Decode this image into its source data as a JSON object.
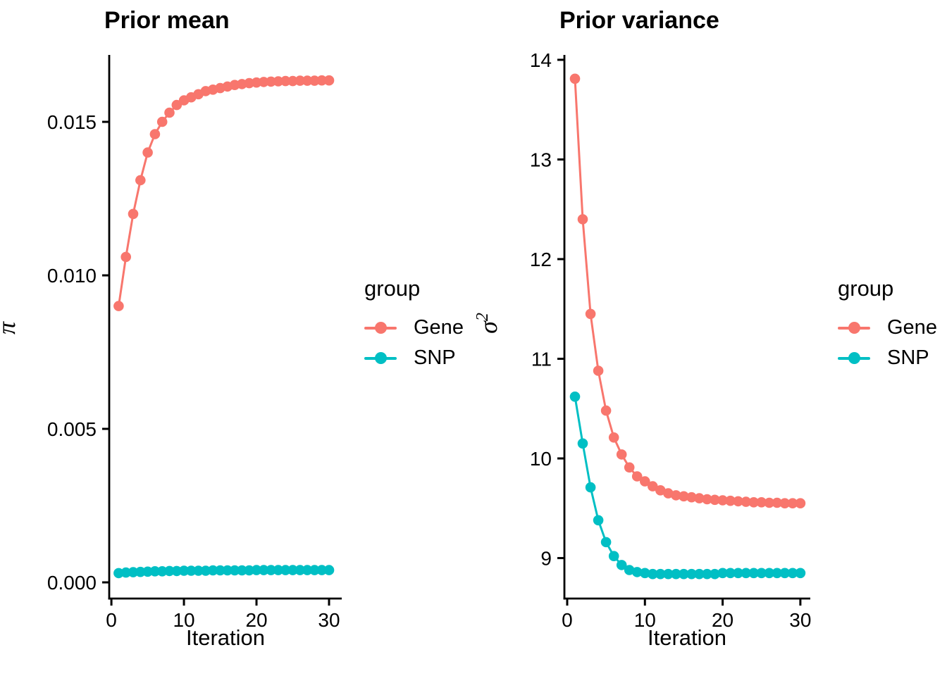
{
  "colors": {
    "gene": "#F8766D",
    "snp": "#00BFC4",
    "axis": "#000000"
  },
  "legend": {
    "title": "group",
    "items": [
      {
        "label": "Gene",
        "color_key": "gene"
      },
      {
        "label": "SNP",
        "color_key": "snp"
      }
    ]
  },
  "chart_data": [
    {
      "type": "line",
      "title": "Prior mean",
      "xlabel": "Iteration",
      "ylabel": "π",
      "ylabel_sup": "",
      "legend_position": "right",
      "grid": false,
      "x_ticks": [
        0,
        10,
        20,
        30
      ],
      "y_ticks": [
        0.0,
        0.005,
        0.01,
        0.015
      ],
      "y_tick_labels": [
        "0.000",
        "0.005",
        "0.010",
        "0.015"
      ],
      "xlim": [
        -0.3,
        31.75
      ],
      "ylim": [
        -0.000527,
        0.01718
      ],
      "x": [
        1,
        2,
        3,
        4,
        5,
        6,
        7,
        8,
        9,
        10,
        11,
        12,
        13,
        14,
        15,
        16,
        17,
        18,
        19,
        20,
        21,
        22,
        23,
        24,
        25,
        26,
        27,
        28,
        29,
        30
      ],
      "series": [
        {
          "name": "Gene",
          "color_key": "gene",
          "values": [
            0.009,
            0.0106,
            0.012,
            0.0131,
            0.014,
            0.0146,
            0.015,
            0.0153,
            0.01555,
            0.0157,
            0.0158,
            0.0159,
            0.016,
            0.01605,
            0.0161,
            0.01615,
            0.0162,
            0.01623,
            0.01626,
            0.01628,
            0.0163,
            0.01631,
            0.01632,
            0.01633,
            0.01633,
            0.01634,
            0.01634,
            0.01634,
            0.01635,
            0.01635
          ]
        },
        {
          "name": "SNP",
          "color_key": "snp",
          "values": [
            0.0003,
            0.00032,
            0.00033,
            0.00034,
            0.00035,
            0.00036,
            0.00036,
            0.00037,
            0.00037,
            0.00038,
            0.00038,
            0.00038,
            0.00038,
            0.00039,
            0.00039,
            0.00039,
            0.00039,
            0.00039,
            0.00039,
            0.0004,
            0.0004,
            0.0004,
            0.0004,
            0.0004,
            0.0004,
            0.0004,
            0.0004,
            0.0004,
            0.0004,
            0.0004
          ]
        }
      ]
    },
    {
      "type": "line",
      "title": "Prior variance",
      "xlabel": "Iteration",
      "ylabel": "σ",
      "ylabel_sup": "2",
      "legend_position": "right",
      "grid": false,
      "x_ticks": [
        0,
        10,
        20,
        30
      ],
      "y_ticks": [
        9,
        10,
        11,
        12,
        13,
        14
      ],
      "y_tick_labels": [
        "9",
        "10",
        "11",
        "12",
        "13",
        "14"
      ],
      "xlim": [
        -0.36,
        31.28
      ],
      "ylim": [
        8.594,
        14.049
      ],
      "x": [
        1,
        2,
        3,
        4,
        5,
        6,
        7,
        8,
        9,
        10,
        11,
        12,
        13,
        14,
        15,
        16,
        17,
        18,
        19,
        20,
        21,
        22,
        23,
        24,
        25,
        26,
        27,
        28,
        29,
        30
      ],
      "series": [
        {
          "name": "Gene",
          "color_key": "gene",
          "values": [
            13.81,
            12.4,
            11.45,
            10.88,
            10.48,
            10.21,
            10.04,
            9.91,
            9.82,
            9.77,
            9.72,
            9.68,
            9.65,
            9.63,
            9.62,
            9.61,
            9.6,
            9.59,
            9.585,
            9.58,
            9.575,
            9.57,
            9.565,
            9.56,
            9.56,
            9.555,
            9.555,
            9.55,
            9.55,
            9.55
          ]
        },
        {
          "name": "SNP",
          "color_key": "snp",
          "values": [
            10.62,
            10.15,
            9.71,
            9.38,
            9.16,
            9.02,
            8.93,
            8.88,
            8.86,
            8.85,
            8.84,
            8.84,
            8.84,
            8.84,
            8.84,
            8.84,
            8.84,
            8.84,
            8.84,
            8.85,
            8.85,
            8.85,
            8.85,
            8.85,
            8.85,
            8.85,
            8.85,
            8.85,
            8.85,
            8.85
          ]
        }
      ]
    }
  ]
}
